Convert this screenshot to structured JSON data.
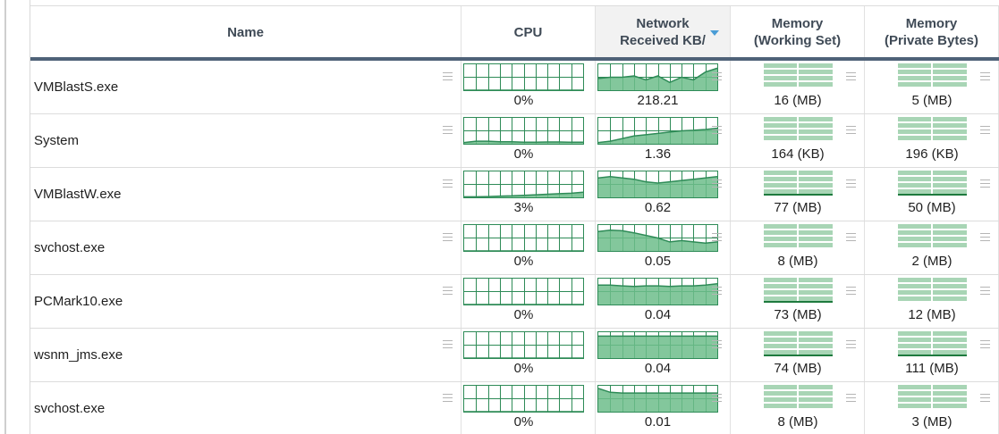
{
  "columns": {
    "name": "Name",
    "cpu": "CPU",
    "net_line1": "Network",
    "net_line2": "Received KB/",
    "ws_line1": "Memory",
    "ws_line2": "(Working Set)",
    "pb_line1": "Memory",
    "pb_line2": "(Private Bytes)"
  },
  "sort": {
    "column": "network_received",
    "direction": "descending"
  },
  "colors": {
    "graph_line": "#2e8b57",
    "graph_fill": "#6dbd8b",
    "grid": "#2e8b57",
    "mem_fill": "#a8d5b5",
    "header_bar": "#4f6278",
    "sort_caret": "#4a9dd6"
  },
  "rows": [
    {
      "name": "VMBlastS.exe",
      "cpu": "0%",
      "net": "218.21",
      "ws": "16 (MB)",
      "pb": "5 (MB)",
      "cpu_trend": [
        0,
        0,
        0,
        0,
        0,
        0,
        0,
        0,
        0,
        0,
        0
      ],
      "net_trend": [
        0.45,
        0.5,
        0.5,
        0.55,
        0.4,
        0.55,
        0.3,
        0.5,
        0.4,
        0.7,
        0.85
      ],
      "ws_level": 0.5,
      "pb_level": 0.45
    },
    {
      "name": "System",
      "cpu": "0%",
      "net": "1.36",
      "ws": "164 (KB)",
      "pb": "196 (KB)",
      "cpu_trend": [
        0.05,
        0.1,
        0.1,
        0.08,
        0.08,
        0.06,
        0.06,
        0.07,
        0.07,
        0.06,
        0.06
      ],
      "net_trend": [
        0.05,
        0.1,
        0.2,
        0.3,
        0.35,
        0.4,
        0.45,
        0.5,
        0.52,
        0.55,
        0.6
      ],
      "ws_level": 0.05,
      "pb_level": 0.05
    },
    {
      "name": "VMBlastW.exe",
      "cpu": "3%",
      "net": "0.62",
      "ws": "77 (MB)",
      "pb": "50 (MB)",
      "cpu_trend": [
        0.02,
        0.02,
        0.03,
        0.05,
        0.06,
        0.08,
        0.1,
        0.12,
        0.14,
        0.16,
        0.2
      ],
      "net_trend": [
        0.75,
        0.8,
        0.75,
        0.7,
        0.6,
        0.55,
        0.6,
        0.65,
        0.7,
        0.75,
        0.8
      ],
      "ws_level": 0.9,
      "pb_level": 0.9
    },
    {
      "name": "svchost.exe",
      "cpu": "0%",
      "net": "0.05",
      "ws": "8 (MB)",
      "pb": "2 (MB)",
      "cpu_trend": [
        0,
        0,
        0,
        0,
        0,
        0,
        0,
        0,
        0,
        0,
        0
      ],
      "net_trend": [
        0.75,
        0.8,
        0.78,
        0.7,
        0.6,
        0.5,
        0.35,
        0.4,
        0.35,
        0.3,
        0.35
      ],
      "ws_level": 0.4,
      "pb_level": 0.3
    },
    {
      "name": "PCMark10.exe",
      "cpu": "0%",
      "net": "0.04",
      "ws": "73 (MB)",
      "pb": "12 (MB)",
      "cpu_trend": [
        0,
        0,
        0,
        0,
        0,
        0,
        0,
        0,
        0,
        0,
        0
      ],
      "net_trend": [
        0.75,
        0.75,
        0.72,
        0.7,
        0.72,
        0.72,
        0.7,
        0.72,
        0.72,
        0.75,
        0.8
      ],
      "ws_level": 0.85,
      "pb_level": 0.6
    },
    {
      "name": "wsnm_jms.exe",
      "cpu": "0%",
      "net": "0.04",
      "ws": "74 (MB)",
      "pb": "111 (MB)",
      "cpu_trend": [
        0,
        0,
        0,
        0,
        0,
        0,
        0,
        0,
        0,
        0,
        0
      ],
      "net_trend": [
        0.85,
        0.85,
        0.85,
        0.85,
        0.85,
        0.85,
        0.85,
        0.85,
        0.85,
        0.85,
        0.85
      ],
      "ws_level": 0.85,
      "pb_level": 0.95
    },
    {
      "name": "svchost.exe",
      "cpu": "0%",
      "net": "0.01",
      "ws": "8 (MB)",
      "pb": "3 (MB)",
      "cpu_trend": [
        0,
        0,
        0,
        0,
        0,
        0,
        0,
        0,
        0,
        0,
        0
      ],
      "net_trend": [
        0.9,
        0.75,
        0.72,
        0.72,
        0.72,
        0.72,
        0.72,
        0.72,
        0.72,
        0.72,
        0.72
      ],
      "ws_level": 0.4,
      "pb_level": 0.35
    }
  ]
}
